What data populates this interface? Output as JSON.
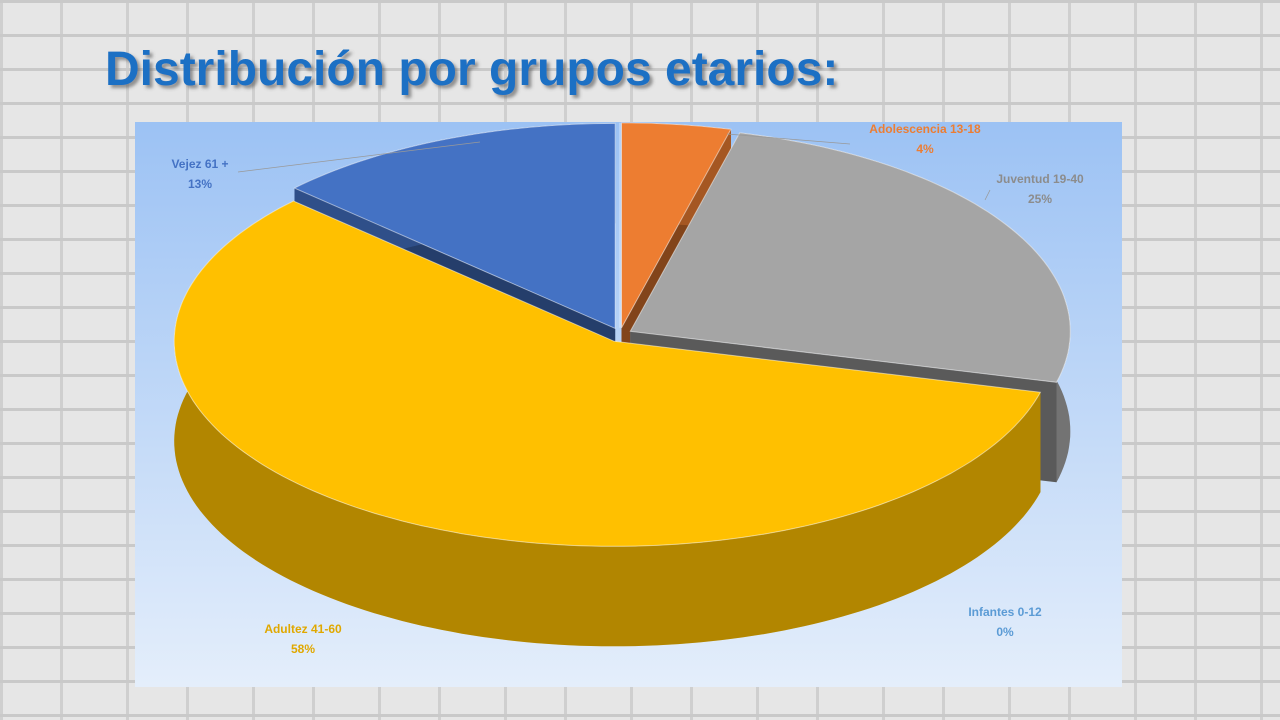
{
  "chart_data": {
    "type": "pie",
    "title": "Distribución por grupos etarios:",
    "categories": [
      "Infantes 0-12",
      "Adolescencia 13-18",
      "Juventud 19-40",
      "Adultez 41-60",
      "Vejez 61 +"
    ],
    "values": [
      0,
      4,
      25,
      58,
      13
    ],
    "value_labels": [
      "0%",
      "4%",
      "25%",
      "58%",
      "13%"
    ],
    "colors": [
      "#5b9bd5",
      "#ed7d31",
      "#a5a5a5",
      "#ffc000",
      "#4472c4"
    ]
  }
}
